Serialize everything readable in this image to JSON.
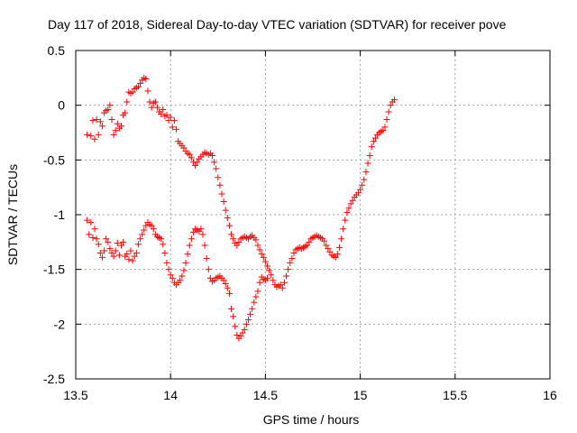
{
  "chart_data": {
    "type": "scatter",
    "title": "Day 117 of 2018, Sidereal Day-to-day VTEC variation (SDTVAR) for receiver pove",
    "xlabel": "GPS time / hours",
    "ylabel": "SDTVAR / TECUs",
    "xlim": [
      13.5,
      16
    ],
    "ylim": [
      -2.5,
      0.5
    ],
    "xticks": [
      "13.5",
      "14",
      "14.5",
      "15",
      "15.5",
      "16"
    ],
    "yticks": [
      "0.5",
      "0",
      "-0.5",
      "-1",
      "-1.5",
      "-2",
      "-2.5"
    ],
    "grid": true,
    "marker": "+",
    "marker_color": "#ff0000",
    "series": [
      {
        "points": [
          [
            13.56,
            -0.27
          ],
          [
            13.58,
            -0.28
          ],
          [
            13.59,
            -0.14
          ],
          [
            13.6,
            -0.31
          ],
          [
            13.61,
            -0.13
          ],
          [
            13.62,
            -0.27
          ],
          [
            13.63,
            -0.15
          ],
          [
            13.64,
            -0.19
          ],
          [
            13.65,
            -0.07
          ],
          [
            13.66,
            -0.05
          ],
          [
            13.67,
            -0.04
          ],
          [
            13.68,
            0.0
          ],
          [
            13.69,
            -0.13
          ],
          [
            13.7,
            -0.27
          ],
          [
            13.71,
            -0.23
          ],
          [
            13.72,
            -0.17
          ],
          [
            13.73,
            -0.21
          ],
          [
            13.74,
            -0.19
          ],
          [
            13.75,
            -0.09
          ],
          [
            13.76,
            -0.07
          ],
          [
            13.77,
            0.03
          ],
          [
            13.78,
            0.12
          ],
          [
            13.79,
            0.11
          ],
          [
            13.8,
            0.12
          ],
          [
            13.81,
            0.15
          ],
          [
            13.82,
            0.16
          ],
          [
            13.83,
            0.17
          ],
          [
            13.84,
            0.2
          ],
          [
            13.85,
            0.23
          ],
          [
            13.86,
            0.25
          ],
          [
            13.87,
            0.24
          ],
          [
            13.88,
            0.13
          ],
          [
            13.89,
            0.03
          ],
          [
            13.9,
            -0.02
          ],
          [
            13.91,
            0.02
          ],
          [
            13.92,
            0.03
          ],
          [
            13.93,
            -0.02
          ],
          [
            13.94,
            -0.06
          ],
          [
            13.95,
            -0.08
          ],
          [
            13.96,
            -0.04
          ],
          [
            13.97,
            -0.1
          ],
          [
            13.98,
            -0.09
          ],
          [
            13.99,
            -0.14
          ],
          [
            14.0,
            -0.11
          ],
          [
            14.01,
            -0.2
          ],
          [
            14.02,
            -0.14
          ],
          [
            14.03,
            -0.22
          ],
          [
            14.04,
            -0.33
          ],
          [
            14.05,
            -0.35
          ],
          [
            14.06,
            -0.37
          ],
          [
            14.07,
            -0.39
          ],
          [
            14.08,
            -0.42
          ],
          [
            14.09,
            -0.44
          ],
          [
            14.1,
            -0.45
          ],
          [
            14.11,
            -0.48
          ],
          [
            14.12,
            -0.52
          ],
          [
            14.13,
            -0.55
          ],
          [
            14.14,
            -0.52
          ],
          [
            14.15,
            -0.49
          ],
          [
            14.16,
            -0.47
          ],
          [
            14.17,
            -0.45
          ],
          [
            14.18,
            -0.43
          ],
          [
            14.19,
            -0.44
          ],
          [
            14.2,
            -0.45
          ],
          [
            14.21,
            -0.44
          ],
          [
            14.22,
            -0.46
          ],
          [
            14.23,
            -0.52
          ],
          [
            14.24,
            -0.58
          ],
          [
            14.25,
            -0.66
          ],
          [
            14.26,
            -0.73
          ],
          [
            14.27,
            -0.81
          ],
          [
            14.28,
            -0.88
          ],
          [
            14.29,
            -0.96
          ],
          [
            14.3,
            -1.03
          ],
          [
            14.31,
            -1.1
          ],
          [
            14.32,
            -1.18
          ],
          [
            14.33,
            -1.22
          ],
          [
            14.34,
            -1.26
          ],
          [
            14.35,
            -1.28
          ],
          [
            14.36,
            -1.25
          ],
          [
            14.37,
            -1.22
          ],
          [
            14.38,
            -1.21
          ],
          [
            14.39,
            -1.2
          ],
          [
            14.4,
            -1.21
          ],
          [
            14.41,
            -1.22
          ],
          [
            14.42,
            -1.2
          ],
          [
            14.43,
            -1.19
          ],
          [
            14.44,
            -1.21
          ],
          [
            14.45,
            -1.23
          ],
          [
            14.46,
            -1.28
          ],
          [
            14.47,
            -1.32
          ],
          [
            14.48,
            -1.36
          ],
          [
            14.49,
            -1.39
          ],
          [
            14.5,
            -1.43
          ],
          [
            14.51,
            -1.47
          ],
          [
            14.52,
            -1.51
          ],
          [
            14.53,
            -1.55
          ],
          [
            14.54,
            -1.6
          ],
          [
            14.55,
            -1.64
          ],
          [
            14.56,
            -1.66
          ],
          [
            14.57,
            -1.65
          ],
          [
            14.58,
            -1.64
          ],
          [
            14.59,
            -1.67
          ],
          [
            14.6,
            -1.62
          ],
          [
            14.61,
            -1.56
          ],
          [
            14.62,
            -1.5
          ],
          [
            14.63,
            -1.44
          ],
          [
            14.64,
            -1.4
          ],
          [
            14.65,
            -1.35
          ],
          [
            14.66,
            -1.32
          ],
          [
            14.67,
            -1.31
          ],
          [
            14.68,
            -1.3
          ],
          [
            14.69,
            -1.31
          ],
          [
            14.7,
            -1.3
          ],
          [
            14.71,
            -1.29
          ],
          [
            14.72,
            -1.28
          ],
          [
            14.73,
            -1.25
          ],
          [
            14.74,
            -1.22
          ],
          [
            14.75,
            -1.21
          ],
          [
            14.76,
            -1.2
          ],
          [
            14.77,
            -1.19
          ],
          [
            14.78,
            -1.2
          ],
          [
            14.79,
            -1.21
          ],
          [
            14.8,
            -1.22
          ],
          [
            14.81,
            -1.24
          ],
          [
            14.82,
            -1.28
          ],
          [
            14.83,
            -1.31
          ],
          [
            14.84,
            -1.34
          ],
          [
            14.85,
            -1.37
          ],
          [
            14.86,
            -1.38
          ],
          [
            14.87,
            -1.39
          ],
          [
            14.88,
            -1.36
          ],
          [
            14.89,
            -1.3
          ],
          [
            14.9,
            -1.22
          ],
          [
            14.91,
            -1.13
          ],
          [
            14.92,
            -1.05
          ],
          [
            14.93,
            -0.98
          ],
          [
            14.94,
            -0.94
          ],
          [
            14.95,
            -0.9
          ],
          [
            14.96,
            -0.87
          ],
          [
            14.97,
            -0.84
          ],
          [
            14.98,
            -0.82
          ],
          [
            14.99,
            -0.8
          ],
          [
            15.0,
            -0.77
          ],
          [
            15.01,
            -0.73
          ],
          [
            15.02,
            -0.68
          ],
          [
            15.03,
            -0.61
          ],
          [
            15.04,
            -0.53
          ],
          [
            15.05,
            -0.46
          ],
          [
            15.06,
            -0.38
          ],
          [
            15.07,
            -0.33
          ],
          [
            15.08,
            -0.3
          ],
          [
            15.09,
            -0.27
          ],
          [
            15.1,
            -0.25
          ],
          [
            15.11,
            -0.24
          ],
          [
            15.12,
            -0.23
          ],
          [
            15.13,
            -0.2
          ],
          [
            15.14,
            -0.13
          ],
          [
            15.15,
            -0.06
          ],
          [
            15.16,
            0.0
          ],
          [
            15.17,
            0.03
          ],
          [
            15.18,
            0.05
          ]
        ]
      },
      {
        "points": [
          [
            13.56,
            -1.05
          ],
          [
            13.57,
            -1.18
          ],
          [
            13.58,
            -1.07
          ],
          [
            13.59,
            -1.21
          ],
          [
            13.6,
            -1.13
          ],
          [
            13.61,
            -1.22
          ],
          [
            13.62,
            -1.27
          ],
          [
            13.63,
            -1.35
          ],
          [
            13.64,
            -1.39
          ],
          [
            13.65,
            -1.33
          ],
          [
            13.66,
            -1.22
          ],
          [
            13.67,
            -1.25
          ],
          [
            13.68,
            -1.31
          ],
          [
            13.69,
            -1.35
          ],
          [
            13.7,
            -1.38
          ],
          [
            13.71,
            -1.33
          ],
          [
            13.72,
            -1.26
          ],
          [
            13.73,
            -1.37
          ],
          [
            13.74,
            -1.28
          ],
          [
            13.75,
            -1.25
          ],
          [
            13.76,
            -1.38
          ],
          [
            13.77,
            -1.36
          ],
          [
            13.78,
            -1.41
          ],
          [
            13.79,
            -1.33
          ],
          [
            13.8,
            -1.42
          ],
          [
            13.81,
            -1.38
          ],
          [
            13.82,
            -1.35
          ],
          [
            13.83,
            -1.27
          ],
          [
            13.84,
            -1.22
          ],
          [
            13.85,
            -1.18
          ],
          [
            13.86,
            -1.14
          ],
          [
            13.87,
            -1.1
          ],
          [
            13.88,
            -1.07
          ],
          [
            13.89,
            -1.09
          ],
          [
            13.9,
            -1.1
          ],
          [
            13.91,
            -1.13
          ],
          [
            13.92,
            -1.18
          ],
          [
            13.93,
            -1.2
          ],
          [
            13.94,
            -1.21
          ],
          [
            13.95,
            -1.22
          ],
          [
            13.96,
            -1.27
          ],
          [
            13.97,
            -1.35
          ],
          [
            13.98,
            -1.44
          ],
          [
            13.99,
            -1.5
          ],
          [
            14.0,
            -1.55
          ],
          [
            14.01,
            -1.58
          ],
          [
            14.02,
            -1.62
          ],
          [
            14.03,
            -1.64
          ],
          [
            14.04,
            -1.62
          ],
          [
            14.05,
            -1.6
          ],
          [
            14.06,
            -1.56
          ],
          [
            14.07,
            -1.51
          ],
          [
            14.08,
            -1.44
          ],
          [
            14.09,
            -1.36
          ],
          [
            14.1,
            -1.28
          ],
          [
            14.11,
            -1.22
          ],
          [
            14.12,
            -1.16
          ],
          [
            14.13,
            -1.13
          ],
          [
            14.14,
            -1.14
          ],
          [
            14.15,
            -1.15
          ],
          [
            14.16,
            -1.13
          ],
          [
            14.17,
            -1.18
          ],
          [
            14.18,
            -1.28
          ],
          [
            14.19,
            -1.4
          ],
          [
            14.2,
            -1.5
          ],
          [
            14.21,
            -1.58
          ],
          [
            14.22,
            -1.61
          ],
          [
            14.23,
            -1.6
          ],
          [
            14.24,
            -1.58
          ],
          [
            14.25,
            -1.57
          ],
          [
            14.26,
            -1.56
          ],
          [
            14.27,
            -1.58
          ],
          [
            14.28,
            -1.6
          ],
          [
            14.29,
            -1.63
          ],
          [
            14.3,
            -1.67
          ],
          [
            14.31,
            -1.72
          ],
          [
            14.32,
            -1.86
          ],
          [
            14.33,
            -1.93
          ],
          [
            14.34,
            -2.02
          ],
          [
            14.35,
            -2.1
          ],
          [
            14.36,
            -2.13
          ],
          [
            14.37,
            -2.11
          ],
          [
            14.38,
            -2.08
          ],
          [
            14.39,
            -2.05
          ],
          [
            14.4,
            -2.0
          ],
          [
            14.41,
            -1.96
          ],
          [
            14.42,
            -1.91
          ],
          [
            14.43,
            -1.86
          ],
          [
            14.44,
            -1.8
          ],
          [
            14.45,
            -1.75
          ],
          [
            14.46,
            -1.7
          ],
          [
            14.47,
            -1.62
          ],
          [
            14.48,
            -1.57
          ],
          [
            14.49,
            -1.59
          ],
          [
            14.5,
            -1.6
          ],
          [
            14.51,
            -1.58
          ]
        ]
      }
    ]
  }
}
